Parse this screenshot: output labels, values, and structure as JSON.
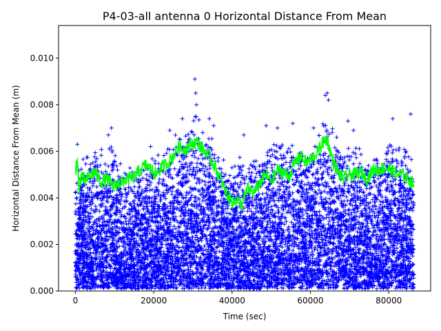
{
  "chart_data": {
    "type": "scatter",
    "title": "P4-03-all antenna 0 Horizontal Distance From Mean",
    "xlabel": "Time (sec)",
    "ylabel": "Horizontal Distance From Mean (m)",
    "xlim": [
      -4300,
      90700
    ],
    "ylim": [
      0.0,
      0.0114
    ],
    "xticks": [
      0,
      20000,
      40000,
      60000,
      80000
    ],
    "xtick_labels": [
      "0",
      "20000",
      "40000",
      "60000",
      "80000"
    ],
    "yticks": [
      0.0,
      0.002,
      0.004,
      0.006,
      0.008,
      0.01
    ],
    "ytick_labels": [
      "0.000",
      "0.002",
      "0.004",
      "0.006",
      "0.008",
      "0.010"
    ],
    "series": [
      {
        "name": "horizontal distance samples",
        "marker": "+",
        "color": "#0000ff",
        "x_range": [
          0,
          86400
        ],
        "envelope_x": [
          0,
          1000,
          3000,
          5000,
          7000,
          9000,
          11000,
          13000,
          15000,
          17000,
          19000,
          21000,
          23000,
          25000,
          27000,
          29000,
          31000,
          33000,
          35000,
          37000,
          39000,
          41000,
          43000,
          45000,
          47000,
          49000,
          51000,
          53000,
          55000,
          57000,
          59000,
          61000,
          63000,
          64500,
          66000,
          68000,
          70000,
          72000,
          74000,
          76000,
          78000,
          80000,
          82000,
          84000,
          86400
        ],
        "envelope_max": [
          0.0048,
          0.0058,
          0.006,
          0.0062,
          0.0062,
          0.0064,
          0.0058,
          0.0056,
          0.0054,
          0.0058,
          0.0058,
          0.006,
          0.0062,
          0.0066,
          0.007,
          0.007,
          0.0078,
          0.007,
          0.0068,
          0.006,
          0.0058,
          0.006,
          0.0058,
          0.0058,
          0.006,
          0.0064,
          0.0066,
          0.0064,
          0.0064,
          0.0062,
          0.0064,
          0.0066,
          0.0072,
          0.008,
          0.0068,
          0.0064,
          0.0064,
          0.0062,
          0.006,
          0.006,
          0.0062,
          0.0066,
          0.0064,
          0.0064,
          0.0058
        ],
        "outliers": [
          {
            "x": 500,
            "y": 0.0063
          },
          {
            "x": 8400,
            "y": 0.0067
          },
          {
            "x": 9200,
            "y": 0.007
          },
          {
            "x": 19200,
            "y": 0.0062
          },
          {
            "x": 24100,
            "y": 0.0069
          },
          {
            "x": 27300,
            "y": 0.0074
          },
          {
            "x": 30500,
            "y": 0.0091
          },
          {
            "x": 30700,
            "y": 0.0085
          },
          {
            "x": 30900,
            "y": 0.008
          },
          {
            "x": 34200,
            "y": 0.0074
          },
          {
            "x": 35300,
            "y": 0.0071
          },
          {
            "x": 43000,
            "y": 0.0067
          },
          {
            "x": 48700,
            "y": 0.0071
          },
          {
            "x": 51600,
            "y": 0.007
          },
          {
            "x": 55500,
            "y": 0.0072
          },
          {
            "x": 60800,
            "y": 0.007
          },
          {
            "x": 63800,
            "y": 0.0084
          },
          {
            "x": 64300,
            "y": 0.0085
          },
          {
            "x": 64600,
            "y": 0.0082
          },
          {
            "x": 66700,
            "y": 0.0066
          },
          {
            "x": 69600,
            "y": 0.0073
          },
          {
            "x": 71000,
            "y": 0.0069
          },
          {
            "x": 81000,
            "y": 0.0074
          },
          {
            "x": 85600,
            "y": 0.0076
          }
        ]
      },
      {
        "name": "moving average",
        "marker": "line",
        "color": "#00ff00",
        "x": [
          0,
          500,
          1000,
          1500,
          2500,
          4000,
          5000,
          6500,
          8000,
          9500,
          11000,
          12000,
          13500,
          15000,
          16500,
          18000,
          19500,
          20500,
          22000,
          23500,
          25000,
          26500,
          28000,
          29500,
          31000,
          32500,
          34000,
          35500,
          37000,
          38500,
          40000,
          41000,
          42500,
          44000,
          45500,
          47000,
          48500,
          50000,
          51500,
          53000,
          54500,
          56000,
          57500,
          59000,
          60500,
          62000,
          63200,
          64300,
          65500,
          67000,
          68500,
          70000,
          71500,
          73000,
          74500,
          76000,
          77500,
          79000,
          80500,
          82000,
          83500,
          85000,
          86400
        ],
        "values": [
          0.0052,
          0.0055,
          0.0043,
          0.005,
          0.0047,
          0.005,
          0.0051,
          0.0047,
          0.0048,
          0.0045,
          0.0046,
          0.0047,
          0.0048,
          0.0049,
          0.0052,
          0.0054,
          0.0052,
          0.005,
          0.0053,
          0.0055,
          0.0058,
          0.0062,
          0.0061,
          0.0063,
          0.0064,
          0.0061,
          0.0058,
          0.0054,
          0.0048,
          0.0042,
          0.0038,
          0.0039,
          0.0037,
          0.0044,
          0.0042,
          0.0046,
          0.005,
          0.0047,
          0.0052,
          0.0051,
          0.0049,
          0.0055,
          0.0058,
          0.0055,
          0.0057,
          0.006,
          0.0064,
          0.0065,
          0.0057,
          0.0051,
          0.0048,
          0.005,
          0.005,
          0.0051,
          0.0048,
          0.0052,
          0.0052,
          0.0053,
          0.0052,
          0.005,
          0.005,
          0.0048,
          0.0046
        ]
      }
    ]
  }
}
